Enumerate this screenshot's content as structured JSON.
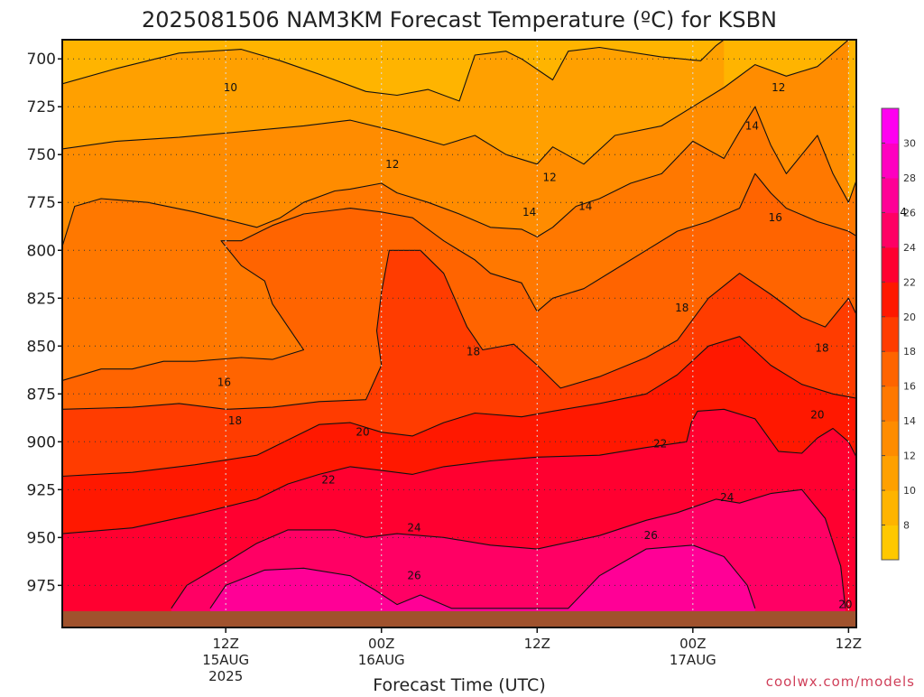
{
  "chart_data": {
    "type": "heatmap",
    "title": "2025081506 NAM3KM Forecast Temperature (ºC) for KSBN",
    "xlabel": "Forecast Time (UTC)",
    "ylabel": "",
    "credit": "coolwx.com/models",
    "y_axis": {
      "unit": "hPa",
      "range": [
        690,
        997
      ],
      "ticks": [
        700,
        725,
        750,
        775,
        800,
        825,
        850,
        875,
        900,
        925,
        950,
        975
      ]
    },
    "x_axis": {
      "unit": "forecast hour",
      "range": [
        -10.5,
        40.5
      ],
      "ticks": [
        {
          "hour": 0,
          "lines": [
            "12Z",
            "15AUG",
            "2025"
          ]
        },
        {
          "hour": 10,
          "lines": [
            "00Z",
            "16AUG"
          ]
        },
        {
          "hour": 20,
          "lines": [
            "12Z"
          ]
        },
        {
          "hour": 30,
          "lines": [
            "00Z",
            "17AUG"
          ]
        },
        {
          "hour": 40,
          "lines": [
            "12Z"
          ]
        }
      ]
    },
    "grid": "dotted",
    "colorbar": {
      "position": "right",
      "levels": [
        6,
        8,
        10,
        12,
        14,
        16,
        18,
        20,
        22,
        24,
        26,
        28,
        30,
        32
      ],
      "tick_labels": [
        8,
        10,
        12,
        14,
        16,
        18,
        20,
        22,
        24,
        26,
        28,
        30
      ],
      "colors": [
        "#ffc800",
        "#ffb400",
        "#ffa000",
        "#ff8c00",
        "#ff7800",
        "#ff6400",
        "#ff3c00",
        "#ff1800",
        "#ff0030",
        "#ff0064",
        "#ff0096",
        "#ff00c0",
        "#ff00f0"
      ]
    },
    "contour_labels": [
      {
        "value": "10",
        "hour": 0.3,
        "pressure": 715
      },
      {
        "value": "12",
        "hour": 35.5,
        "pressure": 715
      },
      {
        "value": "14",
        "hour": 33.8,
        "pressure": 735
      },
      {
        "value": "12",
        "hour": 10.7,
        "pressure": 755
      },
      {
        "value": "12",
        "hour": 20.8,
        "pressure": 762
      },
      {
        "value": "14",
        "hour": 23.1,
        "pressure": 777
      },
      {
        "value": "14",
        "hour": 43.3,
        "pressure": 780
      },
      {
        "value": "14",
        "hour": 19.5,
        "pressure": 780
      },
      {
        "value": "16",
        "hour": 35.3,
        "pressure": 783
      },
      {
        "value": "18",
        "hour": 29.3,
        "pressure": 830
      },
      {
        "value": "18",
        "hour": 15.9,
        "pressure": 853
      },
      {
        "value": "18",
        "hour": 38.3,
        "pressure": 851
      },
      {
        "value": "16",
        "hour": -0.1,
        "pressure": 869
      },
      {
        "value": "20",
        "hour": 38.0,
        "pressure": 886
      },
      {
        "value": "18",
        "hour": 0.6,
        "pressure": 889
      },
      {
        "value": "20",
        "hour": 8.8,
        "pressure": 895
      },
      {
        "value": "22",
        "hour": 27.9,
        "pressure": 901
      },
      {
        "value": "22",
        "hour": 6.6,
        "pressure": 920
      },
      {
        "value": "24",
        "hour": 32.2,
        "pressure": 929
      },
      {
        "value": "24",
        "hour": 12.1,
        "pressure": 945
      },
      {
        "value": "26",
        "hour": 27.3,
        "pressure": 949
      },
      {
        "value": "26",
        "hour": 12.1,
        "pressure": 970
      },
      {
        "value": "20",
        "hour": 39.8,
        "pressure": 985
      }
    ],
    "isotherms": [
      {
        "value": 10,
        "points": [
          [
            -10.5,
            713
          ],
          [
            -7,
            705
          ],
          [
            -3,
            697
          ],
          [
            1,
            695
          ],
          [
            3.5,
            701
          ],
          [
            6,
            708
          ],
          [
            9,
            717
          ],
          [
            11,
            719
          ],
          [
            13,
            716
          ],
          [
            15,
            722
          ],
          [
            16,
            698
          ],
          [
            18,
            696
          ],
          [
            19,
            700
          ],
          [
            21,
            711
          ],
          [
            22,
            696
          ],
          [
            24,
            694
          ],
          [
            28,
            699
          ],
          [
            30.5,
            701
          ],
          [
            31.5,
            693
          ],
          [
            32,
            690
          ]
        ]
      },
      {
        "value": 12,
        "points": [
          [
            -10.5,
            747
          ],
          [
            -7,
            743
          ],
          [
            -3,
            741
          ],
          [
            1,
            738
          ],
          [
            5,
            735
          ],
          [
            8,
            732
          ],
          [
            11,
            738
          ],
          [
            14,
            745
          ],
          [
            16,
            740
          ],
          [
            18,
            750
          ],
          [
            20,
            755
          ],
          [
            21,
            746
          ],
          [
            23,
            755
          ],
          [
            25,
            740
          ],
          [
            28,
            735
          ],
          [
            30,
            725
          ],
          [
            32,
            715
          ],
          [
            34,
            703
          ],
          [
            36,
            709
          ],
          [
            38,
            704
          ],
          [
            40,
            690
          ]
        ]
      },
      {
        "value": 14,
        "points": [
          [
            -10.5,
            798
          ],
          [
            -9.7,
            777
          ],
          [
            -8,
            773
          ],
          [
            -5,
            775
          ],
          [
            -2,
            780
          ],
          [
            0,
            784
          ],
          [
            2,
            788
          ],
          [
            3.5,
            783
          ],
          [
            5,
            775
          ],
          [
            7,
            769
          ],
          [
            8,
            768
          ],
          [
            10,
            765
          ],
          [
            11,
            770
          ],
          [
            13,
            775
          ],
          [
            15,
            781
          ],
          [
            17,
            788
          ],
          [
            19,
            789
          ],
          [
            20,
            793
          ],
          [
            21,
            788
          ],
          [
            22.5,
            777
          ],
          [
            24,
            773
          ],
          [
            26,
            765
          ],
          [
            28,
            760
          ],
          [
            30,
            743
          ],
          [
            32,
            752
          ],
          [
            33,
            738
          ],
          [
            34,
            725
          ],
          [
            35,
            745
          ],
          [
            36,
            760
          ],
          [
            38,
            740
          ],
          [
            39,
            760
          ],
          [
            40,
            775
          ],
          [
            41,
            752
          ],
          [
            42,
            760
          ],
          [
            43,
            740
          ],
          [
            44,
            735
          ],
          [
            45,
            731
          ],
          [
            46,
            735
          ],
          [
            48,
            725
          ],
          [
            50,
            715
          ],
          [
            50.5,
            705
          ]
        ]
      },
      {
        "value": 16,
        "points": [
          [
            -10.5,
            868
          ],
          [
            -8,
            862
          ],
          [
            -6,
            862
          ],
          [
            -4,
            858
          ],
          [
            -2,
            858
          ],
          [
            1,
            856
          ],
          [
            3,
            857
          ],
          [
            5,
            852
          ],
          [
            4,
            840
          ],
          [
            3,
            828
          ],
          [
            2.5,
            816
          ],
          [
            1,
            808
          ],
          [
            -0.3,
            795
          ],
          [
            1,
            795
          ],
          [
            3,
            787
          ],
          [
            5,
            781
          ],
          [
            8,
            778
          ],
          [
            10,
            780
          ],
          [
            12,
            783
          ],
          [
            14,
            795
          ],
          [
            16,
            805
          ],
          [
            17,
            812
          ],
          [
            19,
            817
          ],
          [
            20,
            832
          ],
          [
            21,
            825
          ],
          [
            23,
            820
          ],
          [
            25,
            810
          ],
          [
            27,
            800
          ],
          [
            29,
            790
          ],
          [
            31,
            785
          ],
          [
            33,
            778
          ],
          [
            34,
            760
          ],
          [
            35,
            770
          ],
          [
            36,
            778
          ],
          [
            38,
            785
          ],
          [
            40,
            790
          ],
          [
            42,
            800
          ],
          [
            44,
            806
          ],
          [
            46,
            800
          ],
          [
            47.5,
            782
          ],
          [
            49,
            790
          ],
          [
            50.5,
            797
          ]
        ]
      },
      {
        "value": 18,
        "points": [
          [
            -10.5,
            883
          ],
          [
            -6,
            882
          ],
          [
            -3,
            880
          ],
          [
            0,
            883
          ],
          [
            3,
            882
          ],
          [
            6,
            879
          ],
          [
            9,
            878
          ],
          [
            10,
            860
          ],
          [
            9.7,
            842
          ],
          [
            10,
            822
          ],
          [
            10.5,
            800
          ],
          [
            12.5,
            800
          ],
          [
            14,
            812
          ],
          [
            15.5,
            840
          ],
          [
            16.5,
            852
          ],
          [
            18.5,
            849
          ],
          [
            20,
            860
          ],
          [
            21.5,
            872
          ],
          [
            24,
            866
          ],
          [
            27,
            856
          ],
          [
            29,
            847
          ],
          [
            31,
            825
          ],
          [
            33,
            812
          ],
          [
            35,
            823
          ],
          [
            37,
            835
          ],
          [
            38.5,
            840
          ],
          [
            40,
            825
          ],
          [
            41,
            842
          ],
          [
            42,
            850
          ],
          [
            43,
            838
          ],
          [
            45,
            830
          ],
          [
            46.5,
            818
          ],
          [
            48,
            808
          ],
          [
            49,
            823
          ],
          [
            50.5,
            836
          ]
        ]
      },
      {
        "value": 20,
        "points": [
          [
            -10.5,
            918
          ],
          [
            -6,
            916
          ],
          [
            -2,
            912
          ],
          [
            2,
            907
          ],
          [
            4,
            899
          ],
          [
            6,
            891
          ],
          [
            8,
            890
          ],
          [
            10,
            895
          ],
          [
            12,
            897
          ],
          [
            14,
            890
          ],
          [
            16,
            885
          ],
          [
            19,
            887
          ],
          [
            21,
            884
          ],
          [
            24,
            880
          ],
          [
            27,
            875
          ],
          [
            29,
            865
          ],
          [
            31,
            850
          ],
          [
            33,
            845
          ],
          [
            35,
            860
          ],
          [
            37,
            870
          ],
          [
            39,
            875
          ],
          [
            41,
            878
          ],
          [
            42,
            870
          ],
          [
            43,
            860
          ],
          [
            44,
            866
          ],
          [
            46,
            880
          ],
          [
            48,
            900
          ],
          [
            50,
            880
          ],
          [
            50.5,
            870
          ]
        ]
      },
      {
        "value": 22,
        "points": [
          [
            -10.5,
            948
          ],
          [
            -6,
            945
          ],
          [
            -2,
            938
          ],
          [
            2,
            930
          ],
          [
            4,
            922
          ],
          [
            6,
            917
          ],
          [
            8,
            913
          ],
          [
            10,
            915
          ],
          [
            12,
            917
          ],
          [
            14,
            913
          ],
          [
            17,
            910
          ],
          [
            20,
            908
          ],
          [
            24,
            907
          ],
          [
            27,
            903
          ],
          [
            29.6,
            900
          ],
          [
            29.9,
            890
          ],
          [
            30.3,
            884
          ],
          [
            32,
            883
          ],
          [
            34,
            888
          ],
          [
            35.5,
            905
          ],
          [
            37,
            906
          ],
          [
            38,
            898
          ],
          [
            39,
            893
          ],
          [
            40,
            900
          ],
          [
            41.5,
            924
          ],
          [
            42.5,
            918
          ],
          [
            43.5,
            895
          ],
          [
            45.5,
            899
          ],
          [
            47,
            925
          ],
          [
            47.5,
            945
          ],
          [
            49,
            955
          ],
          [
            50.5,
            955
          ]
        ]
      },
      {
        "value": 24,
        "points": [
          [
            -3.5,
            987
          ],
          [
            -2.5,
            975
          ],
          [
            0,
            963
          ],
          [
            2,
            953
          ],
          [
            4,
            946
          ],
          [
            7,
            946
          ],
          [
            9,
            950
          ],
          [
            11,
            948
          ],
          [
            14,
            950
          ],
          [
            17,
            954
          ],
          [
            20,
            956
          ],
          [
            24,
            949
          ],
          [
            27,
            941
          ],
          [
            29,
            937
          ],
          [
            31.5,
            930
          ],
          [
            33,
            932
          ],
          [
            35,
            927
          ],
          [
            37,
            925
          ],
          [
            38.5,
            940
          ],
          [
            39.5,
            965
          ],
          [
            39.8,
            987
          ]
        ]
      },
      {
        "value": 26,
        "points": [
          [
            -1,
            987
          ],
          [
            0,
            975
          ],
          [
            2.5,
            967
          ],
          [
            5,
            966
          ],
          [
            8,
            970
          ],
          [
            9.5,
            977
          ],
          [
            11,
            985
          ],
          [
            12.5,
            980
          ],
          [
            14.5,
            987
          ],
          [
            22,
            987
          ],
          [
            24,
            970
          ],
          [
            27,
            956
          ],
          [
            30,
            954
          ],
          [
            32,
            960
          ],
          [
            33.5,
            975
          ],
          [
            34,
            987
          ]
        ]
      }
    ]
  }
}
